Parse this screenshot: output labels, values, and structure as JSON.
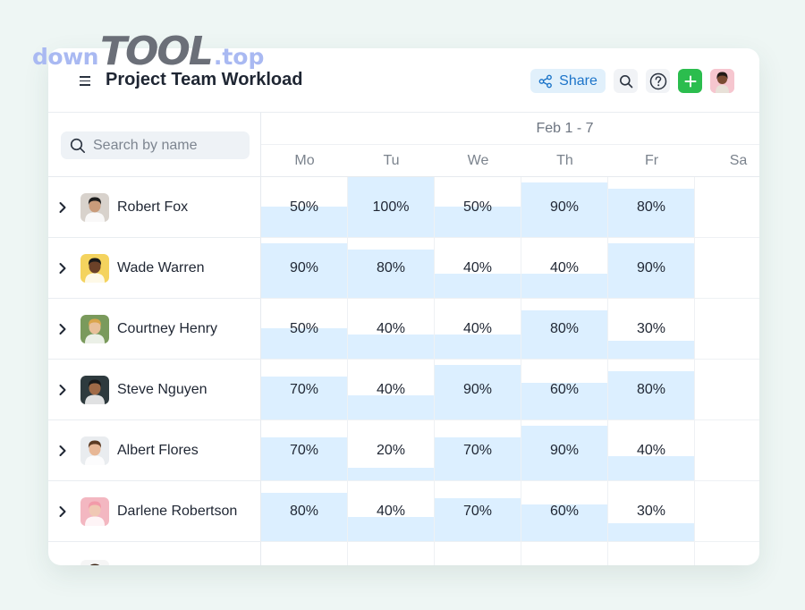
{
  "watermark": {
    "part1": "down",
    "part2": "TOOL",
    "part3": ".top"
  },
  "header": {
    "title": "Project Team Workload",
    "share_label": "Share"
  },
  "search": {
    "placeholder": "Search by name"
  },
  "calendar": {
    "date_range": "Feb 1 - 7",
    "days": [
      "Mo",
      "Tu",
      "We",
      "Th",
      "Fr",
      "Sa"
    ]
  },
  "icons": {
    "menu": "menu-icon",
    "share": "share-icon",
    "search": "search-icon",
    "help": "help-icon",
    "add": "plus-icon",
    "expand": "chevron-right-icon"
  },
  "colors": {
    "fill": "#dcefff",
    "share_bg": "#e1f0fb",
    "share_text": "#1c74c9",
    "add_bg": "#2bbd4e"
  },
  "people": [
    {
      "name": "Robert Fox",
      "workload": [
        "50%",
        "100%",
        "50%",
        "90%",
        "80%"
      ],
      "avatar_bg": "#d8d2cc",
      "skin": "#c99b7a",
      "hair": "#1d1d1d"
    },
    {
      "name": "Wade Warren",
      "workload": [
        "90%",
        "80%",
        "40%",
        "40%",
        "90%"
      ],
      "avatar_bg": "#f4d35e",
      "skin": "#6b4128",
      "hair": "#1a1a1a"
    },
    {
      "name": "Courtney Henry",
      "workload": [
        "50%",
        "40%",
        "40%",
        "80%",
        "30%"
      ],
      "avatar_bg": "#7a9a5c",
      "skin": "#e8c09a",
      "hair": "#d9a54c"
    },
    {
      "name": "Steve Nguyen",
      "workload": [
        "70%",
        "40%",
        "90%",
        "60%",
        "80%"
      ],
      "avatar_bg": "#2e3a3e",
      "skin": "#a06a47",
      "hair": "#1a1a1a"
    },
    {
      "name": "Albert Flores",
      "workload": [
        "70%",
        "20%",
        "70%",
        "90%",
        "40%"
      ],
      "avatar_bg": "#e9ecef",
      "skin": "#e7b796",
      "hair": "#5b3a22"
    },
    {
      "name": "Darlene Robertson",
      "workload": [
        "80%",
        "40%",
        "70%",
        "60%",
        "30%"
      ],
      "avatar_bg": "#f3b7c1",
      "skin": "#f0c8b4",
      "hair": "#f29aa9"
    },
    {
      "name": "",
      "workload": [
        "",
        "",
        "",
        "",
        ""
      ],
      "partial_fill": [
        0,
        0.06,
        0.12,
        0,
        0
      ],
      "avatar_bg": "#f5f5f5",
      "skin": "#b9875f",
      "hair": "#3b2414"
    }
  ]
}
